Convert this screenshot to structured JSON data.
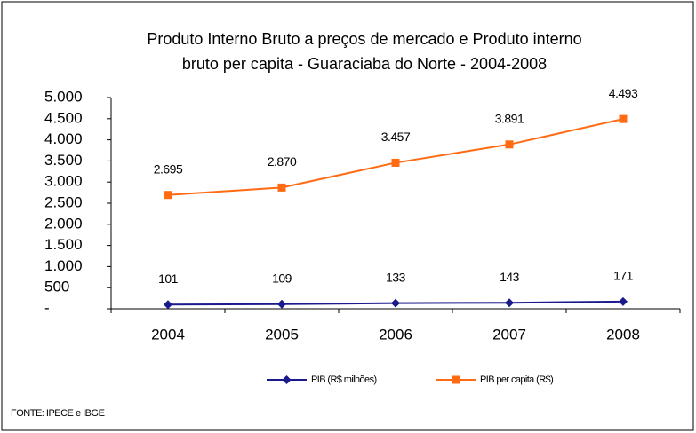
{
  "chart_data": {
    "type": "line",
    "title": [
      "Produto Interno Bruto a preços de mercado  e   Produto interno",
      "bruto per capita - Guaraciaba do Norte - 2004-2008"
    ],
    "categories": [
      "2004",
      "2005",
      "2006",
      "2007",
      "2008"
    ],
    "series": [
      {
        "name": "PIB (R$ milhões)",
        "color": "#1a1a8c",
        "marker": "diamond",
        "values": [
          101,
          109,
          133,
          143,
          171
        ]
      },
      {
        "name": "PIB per capita (R$)",
        "color": "#ff6a13",
        "marker": "square",
        "values": [
          2695,
          2870,
          3457,
          3891,
          4493
        ],
        "value_labels": [
          "2.695",
          "2.870",
          "3.457",
          "3.891",
          "4.493"
        ]
      }
    ],
    "ylim": [
      0,
      5000
    ],
    "yticks": [
      {
        "value": 0,
        "label": "-"
      },
      500,
      {
        "value": 1000,
        "label": "1.000"
      },
      {
        "value": 1500,
        "label": "1.500"
      },
      {
        "value": 2000,
        "label": "2.000"
      },
      {
        "value": 2500,
        "label": "2.500"
      },
      {
        "value": 3000,
        "label": "3.000"
      },
      {
        "value": 3500,
        "label": "3.500"
      },
      {
        "value": 4000,
        "label": "4.000"
      },
      {
        "value": 4500,
        "label": "4.500"
      },
      {
        "value": 5000,
        "label": "5.000"
      }
    ],
    "grid": false,
    "legend": "bottom",
    "source": "FONTE: IPECE e IBGE"
  }
}
